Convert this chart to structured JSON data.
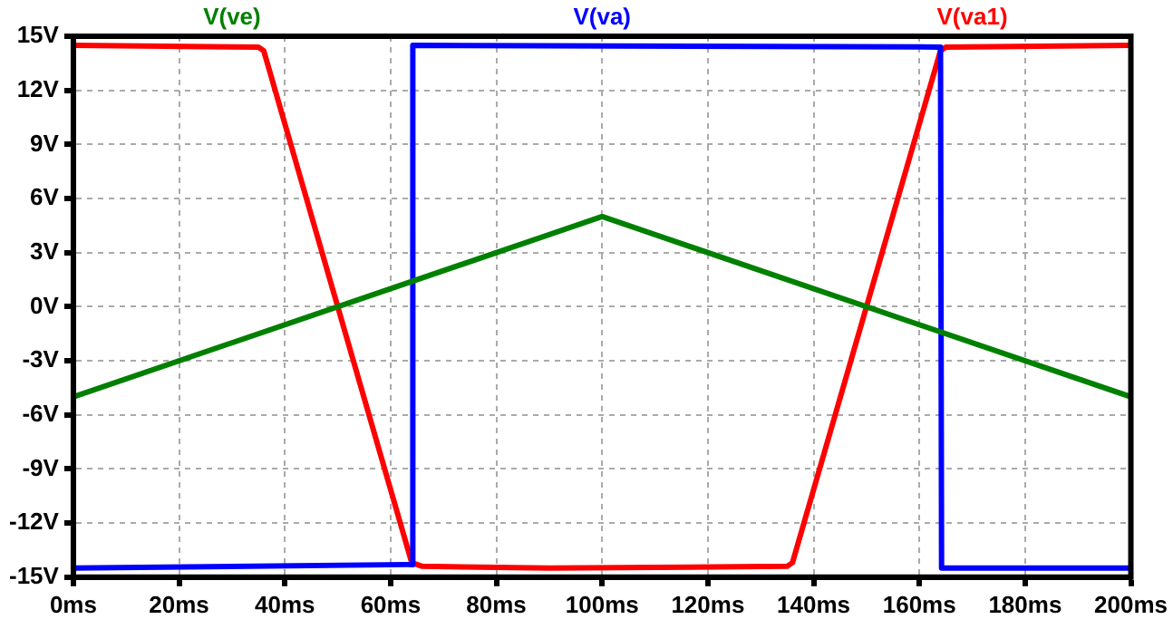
{
  "chart_data": {
    "type": "line",
    "legend": "top",
    "grid": true,
    "marker": "none",
    "line_style": "solid",
    "xlim": [
      0,
      200
    ],
    "ylim": [
      -15,
      15
    ],
    "xticks": [
      {
        "value": 0,
        "label": "0ms"
      },
      {
        "value": 20,
        "label": "20ms"
      },
      {
        "value": 40,
        "label": "40ms"
      },
      {
        "value": 60,
        "label": "60ms"
      },
      {
        "value": 80,
        "label": "80ms"
      },
      {
        "value": 100,
        "label": "100ms"
      },
      {
        "value": 120,
        "label": "120ms"
      },
      {
        "value": 140,
        "label": "140ms"
      },
      {
        "value": 160,
        "label": "160ms"
      },
      {
        "value": 180,
        "label": "180ms"
      },
      {
        "value": 200,
        "label": "200ms"
      }
    ],
    "yticks": [
      {
        "value": -15,
        "label": "-15V"
      },
      {
        "value": -12,
        "label": "-12V"
      },
      {
        "value": -9,
        "label": "-9V"
      },
      {
        "value": -6,
        "label": "-6V"
      },
      {
        "value": -3,
        "label": "-3V"
      },
      {
        "value": 0,
        "label": "0V"
      },
      {
        "value": 3,
        "label": "3V"
      },
      {
        "value": 6,
        "label": "6V"
      },
      {
        "value": 9,
        "label": "9V"
      },
      {
        "value": 12,
        "label": "12V"
      },
      {
        "value": 15,
        "label": "15V"
      }
    ],
    "series": [
      {
        "name": "V(ve)",
        "color": "#008000",
        "x": [
          0,
          100,
          200
        ],
        "values": [
          -5,
          5,
          -5
        ]
      },
      {
        "name": "V(va)",
        "color": "#0000ff",
        "x": [
          0,
          63,
          64,
          64.2,
          164,
          164.2,
          200
        ],
        "values": [
          -14.5,
          -14.3,
          -14.3,
          14.5,
          14.4,
          -14.5,
          -14.5
        ]
      },
      {
        "name": "V(va1)",
        "color": "#ff0000",
        "x": [
          0,
          35,
          36,
          64,
          66,
          90,
          135,
          136,
          164,
          165,
          200
        ],
        "values": [
          14.5,
          14.4,
          14.2,
          -14.2,
          -14.4,
          -14.5,
          -14.4,
          -14.2,
          14.2,
          14.4,
          14.5
        ]
      }
    ]
  }
}
